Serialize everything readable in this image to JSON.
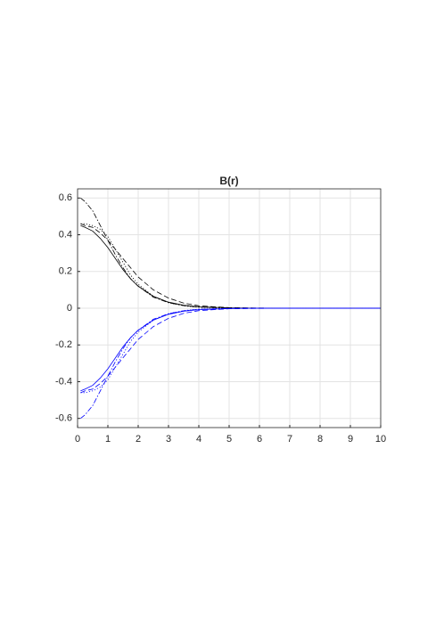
{
  "chart_data": {
    "type": "line",
    "title": "B(r)",
    "x": [
      0.1,
      0.25,
      0.5,
      0.75,
      1,
      1.25,
      1.5,
      1.75,
      2,
      2.5,
      3,
      3.5,
      4,
      5,
      6,
      7,
      8,
      9,
      10
    ],
    "series": [
      {
        "color": "#000000",
        "dash": "solid",
        "values": [
          0.45,
          0.44,
          0.42,
          0.38,
          0.33,
          0.27,
          0.21,
          0.16,
          0.12,
          0.065,
          0.033,
          0.016,
          0.008,
          0.002,
          0,
          0,
          0,
          0,
          0
        ]
      },
      {
        "color": "#000000",
        "dash": "dashed",
        "values": [
          0.46,
          0.45,
          0.44,
          0.41,
          0.37,
          0.32,
          0.27,
          0.22,
          0.17,
          0.1,
          0.055,
          0.028,
          0.013,
          0.003,
          0.001,
          0,
          0,
          0,
          0
        ]
      },
      {
        "color": "#000000",
        "dash": "dashdot",
        "values": [
          0.6,
          0.58,
          0.53,
          0.45,
          0.37,
          0.29,
          0.22,
          0.16,
          0.12,
          0.06,
          0.03,
          0.014,
          0.006,
          0.001,
          0,
          0,
          0,
          0,
          0
        ]
      },
      {
        "color": "#000000",
        "dash": "dotted",
        "values": [
          0.46,
          0.46,
          0.45,
          0.43,
          0.39,
          0.32,
          0.25,
          0.18,
          0.13,
          0.065,
          0.03,
          0.013,
          0.005,
          0.001,
          0,
          0,
          0,
          0,
          0
        ]
      },
      {
        "color": "#0000ff",
        "dash": "solid",
        "values": [
          -0.45,
          -0.44,
          -0.42,
          -0.38,
          -0.33,
          -0.27,
          -0.21,
          -0.16,
          -0.12,
          -0.065,
          -0.033,
          -0.016,
          -0.008,
          -0.002,
          0,
          0,
          0,
          0,
          0
        ]
      },
      {
        "color": "#0000ff",
        "dash": "dashed",
        "values": [
          -0.46,
          -0.45,
          -0.44,
          -0.41,
          -0.37,
          -0.32,
          -0.27,
          -0.22,
          -0.17,
          -0.1,
          -0.055,
          -0.028,
          -0.013,
          -0.003,
          -0.001,
          0,
          0,
          0,
          0
        ]
      },
      {
        "color": "#0000ff",
        "dash": "dashdot",
        "values": [
          -0.6,
          -0.58,
          -0.53,
          -0.45,
          -0.37,
          -0.29,
          -0.22,
          -0.16,
          -0.12,
          -0.06,
          -0.03,
          -0.014,
          -0.006,
          -0.001,
          0,
          0,
          0,
          0,
          0
        ]
      },
      {
        "color": "#0000ff",
        "dash": "dotted",
        "values": [
          -0.46,
          -0.46,
          -0.45,
          -0.43,
          -0.39,
          -0.32,
          -0.25,
          -0.18,
          -0.13,
          -0.065,
          -0.03,
          -0.013,
          -0.005,
          -0.001,
          0,
          0,
          0,
          0,
          0
        ]
      }
    ],
    "xlim": [
      0,
      10
    ],
    "xticks": [
      0,
      1,
      2,
      3,
      4,
      5,
      6,
      7,
      8,
      9,
      10
    ],
    "ylim": [
      -0.65,
      0.65
    ],
    "yticks": [
      -0.6,
      -0.4,
      -0.2,
      0,
      0.2,
      0.4,
      0.6
    ],
    "grid": true
  }
}
